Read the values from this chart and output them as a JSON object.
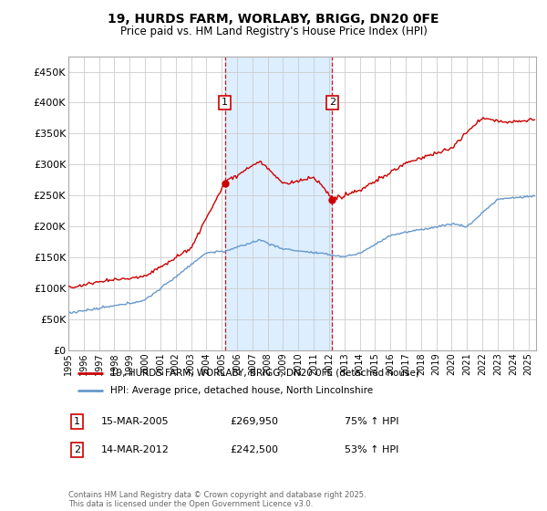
{
  "title_line1": "19, HURDS FARM, WORLABY, BRIGG, DN20 0FE",
  "title_line2": "Price paid vs. HM Land Registry's House Price Index (HPI)",
  "ylim": [
    0,
    475000
  ],
  "yticks": [
    0,
    50000,
    100000,
    150000,
    200000,
    250000,
    300000,
    350000,
    400000,
    450000
  ],
  "ytick_labels": [
    "£0",
    "£50K",
    "£100K",
    "£150K",
    "£200K",
    "£250K",
    "£300K",
    "£350K",
    "£400K",
    "£450K"
  ],
  "xlim_start": 1995.0,
  "xlim_end": 2025.5,
  "sale1_date": 2005.21,
  "sale1_price": 269950,
  "sale2_date": 2012.21,
  "sale2_price": 242500,
  "sale_color": "#cc0000",
  "hpi_color": "#6699cc",
  "shade_color": "#ddeeff",
  "grid_color": "#cccccc",
  "legend_label1": "19, HURDS FARM, WORLABY, BRIGG, DN20 0FE (detached house)",
  "legend_label2": "HPI: Average price, detached house, North Lincolnshire",
  "annotation1_date": "15-MAR-2005",
  "annotation1_price": "£269,950",
  "annotation1_hpi": "75% ↑ HPI",
  "annotation2_date": "14-MAR-2012",
  "annotation2_price": "£242,500",
  "annotation2_hpi": "53% ↑ HPI",
  "copyright_text": "Contains HM Land Registry data © Crown copyright and database right 2025.\nThis data is licensed under the Open Government Licence v3.0.",
  "background_color": "#ffffff",
  "xticks": [
    1995,
    1996,
    1997,
    1998,
    1999,
    2000,
    2001,
    2002,
    2003,
    2004,
    2005,
    2006,
    2007,
    2008,
    2009,
    2010,
    2011,
    2012,
    2013,
    2014,
    2015,
    2016,
    2017,
    2018,
    2019,
    2020,
    2021,
    2022,
    2023,
    2024,
    2025
  ]
}
